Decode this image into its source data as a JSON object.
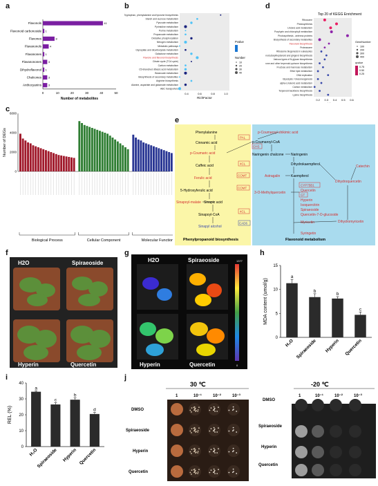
{
  "panel_labels": {
    "a": "a",
    "b": "b",
    "c": "c",
    "d": "d",
    "e": "e",
    "f": "f",
    "g": "g",
    "h": "h",
    "i": "i",
    "j": "j"
  },
  "chart_data": [
    {
      "panel": "a",
      "type": "bar",
      "categories": [
        "Flavonols",
        "Flavonoid carbonoside",
        "Flavones",
        "Flavanonols",
        "Flavanones",
        "Flavanonones",
        "Dihydroflavonol",
        "Chalcones",
        "Anthocyanins"
      ],
      "values": [
        41,
        1,
        8,
        4,
        1,
        3,
        1,
        3,
        3
      ],
      "xlabel": "Number of metabolites",
      "xticks": [
        0,
        10,
        20,
        30,
        40,
        50
      ],
      "color": "#7b1fa2"
    },
    {
      "panel": "b",
      "type": "scatter",
      "categories": [
        "Tryptophan, phenylalanine and tyrosine biosynthesis",
        "Starch and sucrose metabolism",
        "Pyruvate metabolism",
        "Pyrimidine metabolism",
        "Purine metabolism",
        "Propanoate metabolism",
        "Oxidative phosphorylation",
        "Nitrogen metabolism",
        "Metabolic pathways",
        "Glyoxylate and dicarboxylate metabolism",
        "Galactose metabolism",
        "Flavone and flavonol biosynthesis",
        "Citrate cycle (TCA cycle)",
        "Carbon metabolism",
        "C5-Branched dibasic acid metabolism",
        "Butanoate metabolism",
        "Biosynthesis of secondary metabolites",
        "Arginine biosynthesis",
        "Alanine, aspartate and glutamate metabolism",
        "ABC transporters"
      ],
      "highlight": "Flavone and flavonol biosynthesis",
      "rich_factor": [
        0.9,
        0.5,
        0.4,
        0.3,
        0.3,
        0.3,
        0.4,
        0.3,
        0.2,
        0.3,
        0.4,
        0.5,
        0.4,
        0.3,
        0.3,
        0.3,
        0.2,
        0.4,
        0.3,
        0.2
      ],
      "xlabel": "RichFactor",
      "xticks": [
        "0.4",
        "0.6",
        "0.8",
        "1.0"
      ],
      "legend_pvalue_title": "Pvalue",
      "legend_number_title": "Number",
      "legend_number_values": [
        "10",
        "20",
        "30",
        "40"
      ]
    },
    {
      "panel": "c",
      "type": "bar",
      "ylabel": "Number of DEGs",
      "yticks": [
        "0",
        "2000",
        "4000",
        "6000"
      ],
      "groups": [
        {
          "name": "Biological Process",
          "color": "#a0182a",
          "values": [
            3900,
            3400,
            3200,
            3000,
            2900,
            2700,
            2600,
            2500,
            2400,
            2300,
            2200,
            2100,
            2000,
            1900,
            1800,
            1700,
            1650,
            1600,
            1550,
            1500,
            1450,
            1400
          ]
        },
        {
          "name": "Cellular Component",
          "color": "#2e7d32",
          "values": [
            5200,
            5000,
            4800,
            4700,
            4600,
            4500,
            4400,
            4300,
            4200,
            4100,
            4000,
            3900,
            3700,
            3500,
            3300,
            3100,
            2900,
            2700,
            2500,
            2300
          ]
        },
        {
          "name": "Molecular Function",
          "color": "#283593",
          "values": [
            3800,
            3500,
            3300,
            3200,
            3000,
            2900,
            2800,
            2700,
            2600,
            2500,
            2400,
            2300,
            2200,
            2100,
            2000,
            1900,
            1800,
            1700,
            1600,
            1500
          ]
        }
      ]
    },
    {
      "panel": "d",
      "type": "scatter",
      "title": "Top 20 of KEGG Enrichment",
      "categories": [
        "Ribosome",
        "Photosynthesis",
        "Linoleic acid metabolism",
        "Porphyrin and chlorophyll metabolism",
        "Photosynthesis - antenna proteins",
        "Biosynthesis of secondary metabolites",
        "Flavonoid biosynthesis",
        "Proteasome",
        "Ribosome biogenesis in eukaryotes",
        "Stilbenoid,diarylheptanoid and gingerol biosynthesis",
        "Various types of N-glycan biosynthesis",
        "Ubiquinone and other terpenoid-quinone biosynthesis",
        "Fructose and mannose metabolism",
        "Ether lipid metabolism",
        "DNA replication",
        "Glycolysis / Gluconeogenesis",
        "alpha-Linolenic acid metabolism",
        "Carbon metabolism",
        "Terpenoid backbone biosynthesis",
        "Lysine biosynthesis"
      ],
      "highlight": "Flavonoid biosynthesis",
      "rich_factor": [
        0.28,
        0.42,
        0.35,
        0.36,
        0.55,
        0.22,
        0.33,
        0.28,
        0.24,
        0.3,
        0.28,
        0.22,
        0.26,
        0.2,
        0.32,
        0.2,
        0.24,
        0.16,
        0.22,
        0.32
      ],
      "xlabel": "RichFactor",
      "xticks": [
        "0.2",
        "0.3",
        "0.4",
        "0.5",
        "0.6"
      ],
      "legend_count_title": "GeneNumber",
      "legend_count_values": [
        "100",
        "200",
        "300",
        "400"
      ],
      "legend_q_title": "qvalue",
      "legend_q_values": [
        "0.75",
        "0.50",
        "0.25"
      ]
    },
    {
      "panel": "h",
      "type": "bar",
      "categories": [
        "H2O",
        "Spiraeoside",
        "Hyperin",
        "Quercetin"
      ],
      "values": [
        11.3,
        8.4,
        8.1,
        4.7
      ],
      "errors": [
        0.8,
        0.7,
        0.4,
        0.6
      ],
      "letters": [
        "a",
        "b",
        "b",
        "c"
      ],
      "ylabel": "MDA content (umol/g)",
      "yticks": [
        "0",
        "5",
        "10",
        "15"
      ],
      "ylim": [
        0,
        15
      ]
    },
    {
      "panel": "i",
      "type": "bar",
      "categories": [
        "H2O",
        "Spiraeoside",
        "Hyperin",
        "Quercetin"
      ],
      "values": [
        34.5,
        26.5,
        29.5,
        20.5
      ],
      "errors": [
        0.6,
        1.2,
        1.2,
        1.0
      ],
      "letters": [
        "a",
        "c",
        "b",
        "d"
      ],
      "ylabel": "REL (%)",
      "yticks": [
        "0",
        "10",
        "20",
        "30",
        "40"
      ],
      "ylim": [
        0,
        40
      ]
    }
  ],
  "panel_c_groups": [
    "Biological Process",
    "Cellular Component",
    "Molecular Function"
  ],
  "panel_e": {
    "left_title": "Phenylpropanoid biosynthesis",
    "right_title": "Flavonoid metabolism",
    "left_nodes": [
      "Phenylalanine",
      "Cinnamic acid",
      "p-Coumaric acid",
      "Caffeic acid",
      "Ferulic acid",
      "5-Hydroxyferulic acid",
      "Sinapoyl-malate",
      "Sinapic acid",
      "Sinapoyl-CoA",
      "Sinapyl alcohol"
    ],
    "enzymes": [
      "PAL",
      "4CL",
      "COMT",
      "COMT",
      "4CL",
      "CAD6",
      "CHS",
      "CYP75B1",
      "GT"
    ],
    "middle_nodes": [
      "p-Coumaroyl-CoA",
      "Naringenin chalcone",
      "Naringenin",
      "Dihydrokaempferol",
      "Kaempferol",
      "3-O-Methylquercetin",
      "Astragalin"
    ],
    "red_nodes": [
      "p-Coumaroyl shikimic acid",
      "Quercetin",
      "Hyperin",
      "Isoquercitrin",
      "Spiraeoside",
      "Quercetin-7-O-glucoside",
      "Myricetin",
      "Syringetin",
      "Catechin",
      "Dihydroquercetin",
      "Dihydromyricetin"
    ]
  },
  "panel_f": {
    "labels": [
      "H2O",
      "Spiraeoside",
      "Hyperin",
      "Quercetin"
    ]
  },
  "panel_g": {
    "labels": [
      "H2O",
      "Spiraeoside",
      "Hyperin",
      "Quercetin"
    ],
    "scale_max": "1377",
    "scale_min": "0"
  },
  "panel_j": {
    "left_title": "30 ℃",
    "right_title": "-20 ℃",
    "dilutions": [
      "1",
      "10⁻¹",
      "10⁻²",
      "10⁻³"
    ],
    "rows": [
      "DMSO",
      "Spiraeoside",
      "Hyperin",
      "Quercetin"
    ]
  }
}
